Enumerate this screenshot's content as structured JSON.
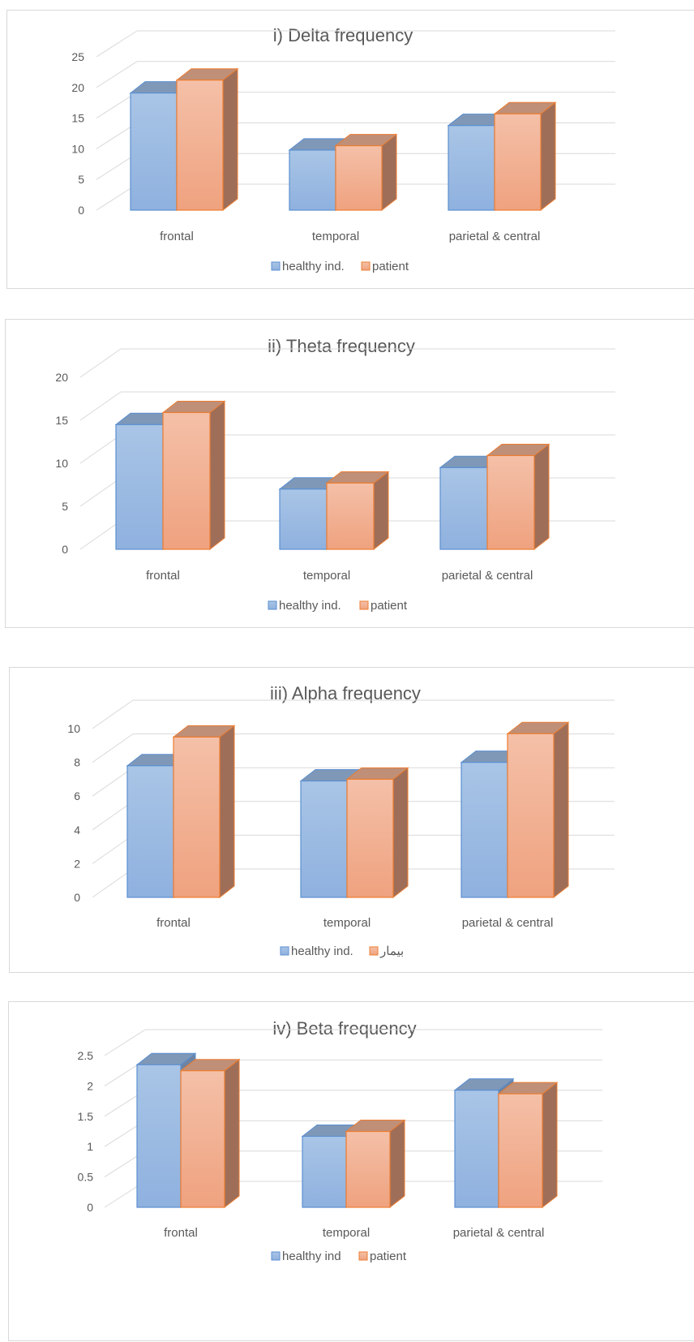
{
  "chart_data": [
    {
      "type": "bar",
      "title": "i) Delta frequency",
      "categories": [
        "frontal",
        "temporal",
        "parietal & central"
      ],
      "series": [
        {
          "name": "healthy ind.",
          "values": [
            19.1,
            9.8,
            13.8
          ]
        },
        {
          "name": "patient",
          "values": [
            21.2,
            10.5,
            15.7
          ]
        }
      ],
      "yticks": [
        "0",
        "5",
        "10",
        "15",
        "20",
        "25"
      ],
      "ylim": [
        0,
        25
      ],
      "grid": true,
      "legend": "bottom",
      "projection": "3d-perspective"
    },
    {
      "type": "bar",
      "title": "ii) Theta frequency",
      "categories": [
        "frontal",
        "temporal",
        "parietal & central"
      ],
      "series": [
        {
          "name": "healthy ind.",
          "values": [
            14.5,
            7.0,
            9.5
          ]
        },
        {
          "name": "patient",
          "values": [
            15.9,
            7.7,
            10.9
          ]
        }
      ],
      "yticks": [
        "0",
        "5",
        "10",
        "15",
        "20"
      ],
      "ylim": [
        0,
        20
      ],
      "grid": true,
      "legend": "bottom",
      "projection": "3d-perspective"
    },
    {
      "type": "bar",
      "title": "iii) Alpha frequency",
      "categories": [
        "frontal",
        "temporal",
        "parietal & central"
      ],
      "series": [
        {
          "name": "healthy ind.",
          "values": [
            7.8,
            6.9,
            8.0
          ]
        },
        {
          "name": "بیمار",
          "values": [
            9.5,
            7.0,
            9.7
          ]
        }
      ],
      "yticks": [
        "0",
        "2",
        "4",
        "6",
        "8",
        "10"
      ],
      "ylim": [
        0,
        10
      ],
      "grid": true,
      "legend": "bottom",
      "projection": "3d-perspective"
    },
    {
      "type": "bar",
      "title": "iv) Beta frequency",
      "categories": [
        "frontal",
        "temporal",
        "parietal & central"
      ],
      "series": [
        {
          "name": "healthy ind",
          "values": [
            2.35,
            1.17,
            1.93
          ]
        },
        {
          "name": "patient",
          "values": [
            2.25,
            1.25,
            1.87
          ]
        }
      ],
      "yticks": [
        "0",
        "0.5",
        "1",
        "1.5",
        "2",
        "2.5"
      ],
      "ylim": [
        0,
        2.5
      ],
      "grid": true,
      "legend": "bottom",
      "projection": "3d-perspective"
    }
  ],
  "colors": {
    "healthy_front_top": "#a9c5e6",
    "healthy_front_bottom": "#8fb1df",
    "healthy_side": "#6e83a2",
    "healthy_top": "#7f98b8",
    "healthy_stroke": "#5b8fd0",
    "patient_front_top": "#f4c0a8",
    "patient_front_bottom": "#efa27f",
    "patient_side": "#9f6e58",
    "patient_top": "#bf8f78",
    "patient_stroke": "#ed7d31",
    "grid": "#d9d9d9",
    "text": "#595959",
    "title": "#595959"
  }
}
